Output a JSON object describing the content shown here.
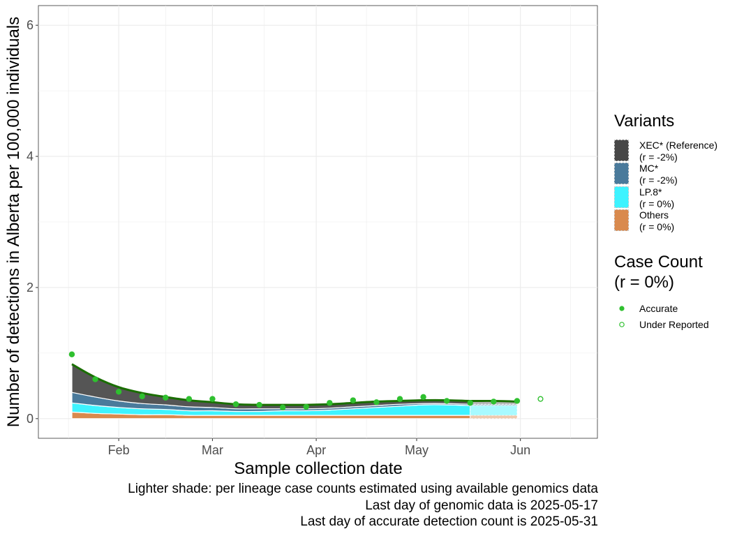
{
  "chart_data": {
    "type": "area",
    "xlabel": "Sample collection date",
    "ylabel": "Number of detections in Alberta per 100,000 individuals",
    "x_ticks": [
      "Feb",
      "Mar",
      "Apr",
      "May",
      "Jun"
    ],
    "x_tick_dates": [
      "2025-02-01",
      "2025-03-01",
      "2025-04-01",
      "2025-05-01",
      "2025-06-01"
    ],
    "x_range": [
      "2025-01-08",
      "2025-06-24"
    ],
    "y_ticks": [
      "0",
      "2",
      "4",
      "6"
    ],
    "ylim": [
      -0.3,
      6.3
    ],
    "grid": true,
    "legend_position": "right",
    "x": [
      "2025-01-18",
      "2025-01-25",
      "2025-02-01",
      "2025-02-08",
      "2025-02-15",
      "2025-02-22",
      "2025-03-01",
      "2025-03-08",
      "2025-03-15",
      "2025-03-22",
      "2025-03-29",
      "2025-04-05",
      "2025-04-12",
      "2025-04-19",
      "2025-04-26",
      "2025-05-03",
      "2025-05-10",
      "2025-05-17",
      "2025-05-24",
      "2025-05-31"
    ],
    "series": [
      {
        "name": "Others",
        "color": "#d98a4e",
        "values": [
          0.1,
          0.08,
          0.07,
          0.06,
          0.06,
          0.05,
          0.05,
          0.05,
          0.05,
          0.05,
          0.05,
          0.05,
          0.05,
          0.05,
          0.05,
          0.05,
          0.05,
          0.05,
          0.05,
          0.05
        ]
      },
      {
        "name": "LP.8*",
        "color": "#3ef3ff",
        "values": [
          0.14,
          0.12,
          0.1,
          0.09,
          0.08,
          0.07,
          0.07,
          0.06,
          0.06,
          0.07,
          0.07,
          0.08,
          0.1,
          0.12,
          0.14,
          0.16,
          0.16,
          0.15,
          0.15,
          0.15
        ]
      },
      {
        "name": "MC*",
        "color": "#4a7a9b",
        "values": [
          0.16,
          0.13,
          0.1,
          0.08,
          0.07,
          0.06,
          0.05,
          0.04,
          0.04,
          0.03,
          0.03,
          0.03,
          0.03,
          0.03,
          0.03,
          0.02,
          0.02,
          0.02,
          0.02,
          0.02
        ]
      },
      {
        "name": "XEC* (Reference)",
        "color": "#555555",
        "values": [
          0.43,
          0.3,
          0.21,
          0.16,
          0.12,
          0.1,
          0.08,
          0.07,
          0.06,
          0.06,
          0.06,
          0.06,
          0.06,
          0.06,
          0.05,
          0.05,
          0.05,
          0.05,
          0.05,
          0.04
        ]
      }
    ],
    "genomic_cutoff": "2025-05-17",
    "accurate_points": {
      "x": [
        "2025-01-18",
        "2025-01-25",
        "2025-02-01",
        "2025-02-08",
        "2025-02-15",
        "2025-02-22",
        "2025-03-01",
        "2025-03-08",
        "2025-03-15",
        "2025-03-22",
        "2025-03-29",
        "2025-04-05",
        "2025-04-12",
        "2025-04-19",
        "2025-04-26",
        "2025-05-03",
        "2025-05-10",
        "2025-05-17",
        "2025-05-24",
        "2025-05-31"
      ],
      "y": [
        0.98,
        0.6,
        0.41,
        0.34,
        0.32,
        0.3,
        0.3,
        0.22,
        0.21,
        0.17,
        0.18,
        0.24,
        0.28,
        0.25,
        0.3,
        0.33,
        0.27,
        0.24,
        0.26,
        0.27
      ]
    },
    "underreported_points": {
      "x": [
        "2025-06-07"
      ],
      "y": [
        0.3
      ]
    },
    "colors": {
      "trend": "#1a6e00",
      "points": "#2fc02f"
    }
  },
  "legend": {
    "variants_title": "Variants",
    "variants": [
      {
        "label": "XEC* (Reference)",
        "rate": "(r = -2%)",
        "color": "#474747"
      },
      {
        "label": "MC*",
        "rate": "(r = -2%)",
        "color": "#4a7a9b"
      },
      {
        "label": "LP.8*",
        "rate": "(r = 0%)",
        "color": "#3ef3ff"
      },
      {
        "label": "Others",
        "rate": "(r = 0%)",
        "color": "#d98a4e"
      }
    ],
    "case_title_line1": "Case Count",
    "case_title_line2": "(r = 0%)",
    "accurate_label": "Accurate",
    "underreported_label": "Under Reported"
  },
  "caption": {
    "line1": "Lighter shade: per lineage case counts estimated using available genomics data",
    "line2": "Last day of genomic data is 2025-05-17",
    "line3": "Last day of accurate detection count is 2025-05-31"
  }
}
